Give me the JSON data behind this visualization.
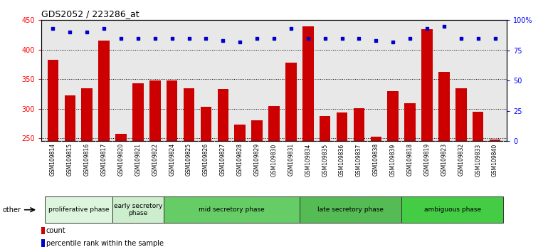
{
  "title": "GDS2052 / 223286_at",
  "categories": [
    "GSM109814",
    "GSM109815",
    "GSM109816",
    "GSM109817",
    "GSM109820",
    "GSM109821",
    "GSM109822",
    "GSM109824",
    "GSM109825",
    "GSM109826",
    "GSM109827",
    "GSM109828",
    "GSM109829",
    "GSM109830",
    "GSM109831",
    "GSM109834",
    "GSM109835",
    "GSM109836",
    "GSM109837",
    "GSM109838",
    "GSM109839",
    "GSM109818",
    "GSM109819",
    "GSM109823",
    "GSM109832",
    "GSM109833",
    "GSM109840"
  ],
  "bar_values": [
    383,
    322,
    334,
    416,
    257,
    343,
    348,
    348,
    334,
    303,
    333,
    273,
    280,
    305,
    378,
    440,
    288,
    293,
    301,
    253,
    330,
    309,
    435,
    362,
    334,
    295,
    248
  ],
  "percentile_values": [
    93,
    90,
    90,
    93,
    85,
    85,
    85,
    85,
    85,
    85,
    83,
    82,
    85,
    85,
    93,
    85,
    85,
    85,
    85,
    83,
    82,
    85,
    93,
    95,
    85,
    85,
    85
  ],
  "bar_color": "#cc0000",
  "percentile_color": "#0000cc",
  "ylim_left": [
    245,
    450
  ],
  "ylim_right": [
    0,
    100
  ],
  "yticks_left": [
    250,
    300,
    350,
    400,
    450
  ],
  "yticks_right": [
    0,
    25,
    50,
    75,
    100
  ],
  "ytick_labels_right": [
    "0",
    "25",
    "50",
    "75",
    "100%"
  ],
  "phases": [
    {
      "label": "proliferative phase",
      "start": 0,
      "end": 4,
      "color": "#ddf5dd"
    },
    {
      "label": "early secretory\nphase",
      "start": 4,
      "end": 7,
      "color": "#cceecc"
    },
    {
      "label": "mid secretory phase",
      "start": 7,
      "end": 15,
      "color": "#66cc66"
    },
    {
      "label": "late secretory phase",
      "start": 15,
      "end": 21,
      "color": "#55bb55"
    },
    {
      "label": "ambiguous phase",
      "start": 21,
      "end": 27,
      "color": "#44cc44"
    }
  ],
  "other_label": "other",
  "legend_count_label": "count",
  "legend_percentile_label": "percentile rank within the sample",
  "plot_bg_color": "#e8e8e8",
  "tick_bg_color": "#d0d0d0"
}
